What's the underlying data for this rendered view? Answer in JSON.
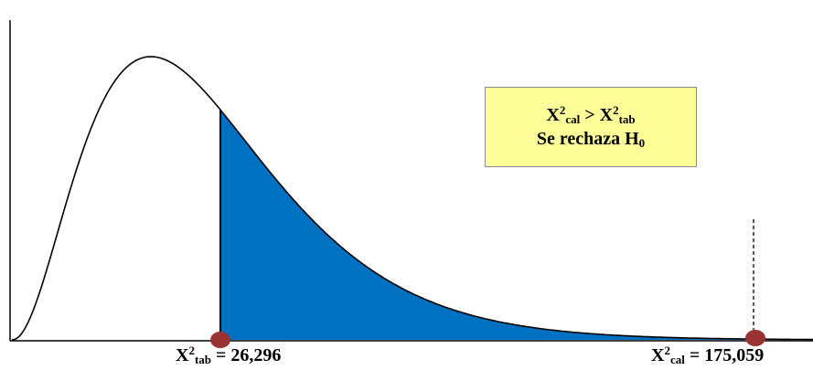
{
  "colors": {
    "rejection_fill": "#0070c0",
    "marker": "#993333",
    "box_fill": "#ffff99",
    "curve": "#000000"
  },
  "result_box": {
    "line1": {
      "base_left": "X",
      "sup_left": "2",
      "sub_left": "cal",
      "operator": " > ",
      "base_right": "X",
      "sup_right": "2",
      "sub_right": "tab"
    },
    "line2": {
      "text": "Se rechaza H",
      "sub": "0"
    }
  },
  "labels": {
    "tabulated": {
      "base": "X",
      "sup": "2",
      "sub": "tab",
      "value": " = 26,296"
    },
    "calculated": {
      "base": "X",
      "sup": "2",
      "sub": "cal",
      "value": " = 175,059"
    }
  },
  "chart_data": {
    "type": "area",
    "distribution": "chi-square density",
    "critical_value": 26.296,
    "calculated_value": 175.059,
    "shaded_region": "right tail beyond critical value"
  }
}
